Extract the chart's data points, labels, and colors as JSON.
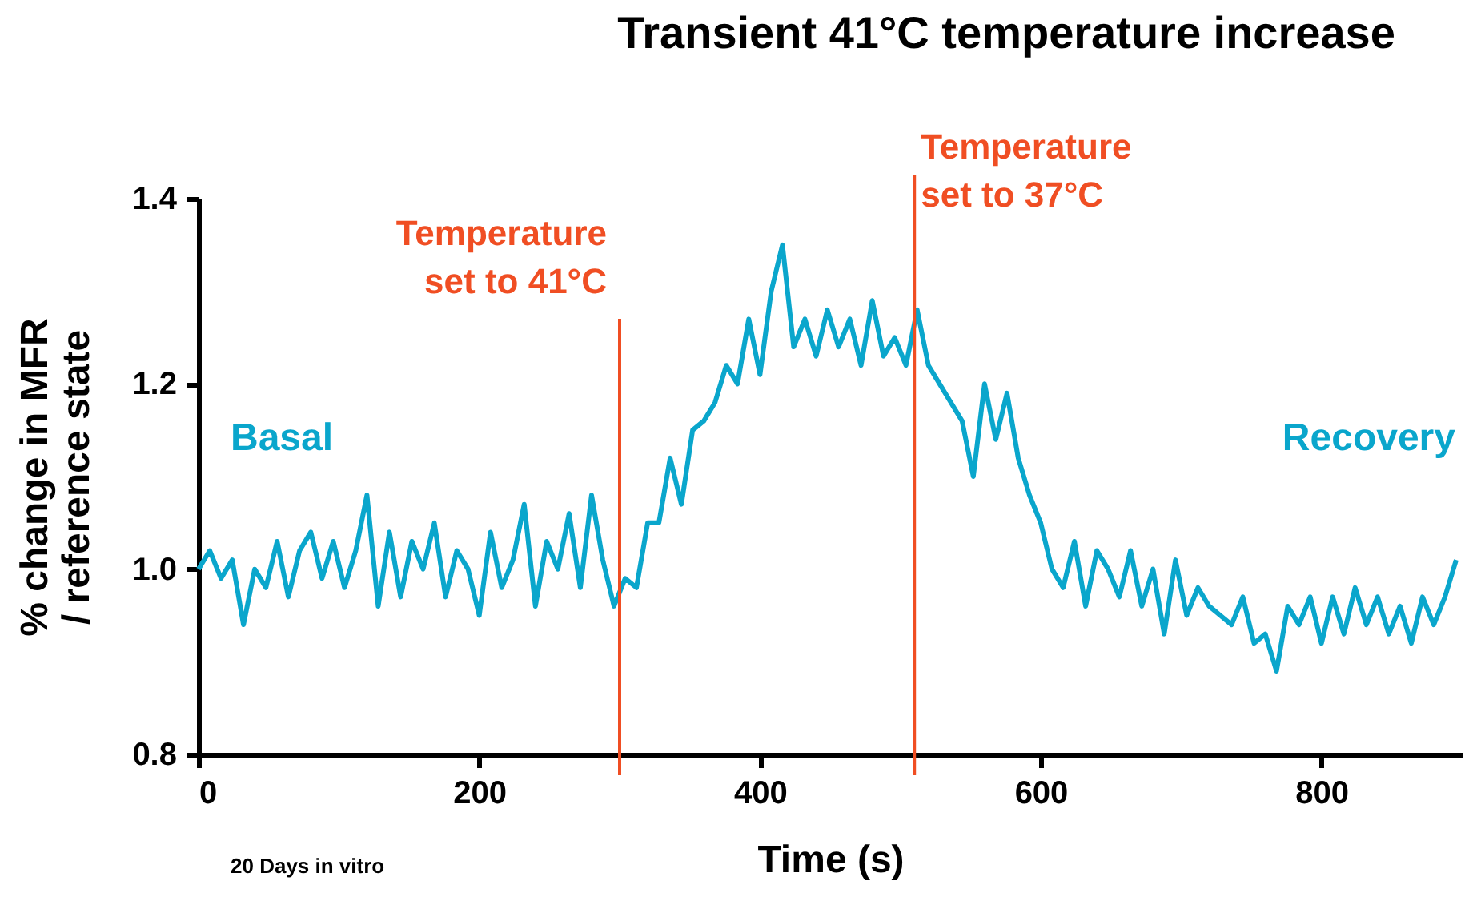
{
  "chart_data": {
    "type": "line",
    "title": "Transient 41°C temperature increase",
    "xlabel": "Time (s)",
    "ylabel": "% change in MFR\n/ reference state",
    "x": [
      0,
      8,
      16,
      24,
      32,
      40,
      48,
      56,
      64,
      72,
      80,
      88,
      96,
      104,
      112,
      120,
      128,
      136,
      144,
      152,
      160,
      168,
      176,
      184,
      192,
      200,
      208,
      216,
      224,
      232,
      240,
      248,
      256,
      264,
      272,
      280,
      288,
      296,
      304,
      312,
      320,
      328,
      336,
      344,
      352,
      360,
      368,
      376,
      384,
      392,
      400,
      408,
      416,
      424,
      432,
      440,
      448,
      456,
      464,
      472,
      480,
      488,
      496,
      504,
      512,
      520,
      528,
      536,
      544,
      552,
      560,
      568,
      576,
      584,
      592,
      600,
      608,
      616,
      624,
      632,
      640,
      648,
      656,
      664,
      672,
      680,
      688,
      696,
      704,
      712,
      720,
      728,
      736,
      744,
      752,
      760,
      768,
      776,
      784,
      792,
      800,
      808,
      816,
      824,
      832,
      840,
      848,
      856,
      864,
      872,
      880,
      888,
      896
    ],
    "series": [
      {
        "color": "#0aa6cc",
        "values": [
          1.0,
          1.02,
          0.99,
          1.01,
          0.94,
          1.0,
          0.98,
          1.03,
          0.97,
          1.02,
          1.04,
          0.99,
          1.03,
          0.98,
          1.02,
          1.08,
          0.96,
          1.04,
          0.97,
          1.03,
          1.0,
          1.05,
          0.97,
          1.02,
          1.0,
          0.95,
          1.04,
          0.98,
          1.01,
          1.07,
          0.96,
          1.03,
          1.0,
          1.06,
          0.98,
          1.08,
          1.01,
          0.96,
          0.99,
          0.98,
          1.05,
          1.05,
          1.12,
          1.07,
          1.15,
          1.16,
          1.18,
          1.22,
          1.2,
          1.27,
          1.21,
          1.3,
          1.35,
          1.24,
          1.27,
          1.23,
          1.28,
          1.24,
          1.27,
          1.22,
          1.29,
          1.23,
          1.25,
          1.22,
          1.28,
          1.22,
          1.2,
          1.18,
          1.16,
          1.1,
          1.2,
          1.14,
          1.19,
          1.12,
          1.08,
          1.05,
          1.0,
          0.98,
          1.03,
          0.96,
          1.02,
          1.0,
          0.97,
          1.02,
          0.96,
          1.0,
          0.93,
          1.01,
          0.95,
          0.98,
          0.96,
          0.95,
          0.94,
          0.97,
          0.92,
          0.93,
          0.89,
          0.96,
          0.94,
          0.97,
          0.92,
          0.97,
          0.93,
          0.98,
          0.94,
          0.97,
          0.93,
          0.96,
          0.92,
          0.97,
          0.94,
          0.97,
          1.01
        ]
      }
    ],
    "xlim": [
      0,
      900
    ],
    "xticks": [
      0,
      200,
      400,
      600,
      800
    ],
    "ylim": [
      0.8,
      1.4
    ],
    "yticks": [
      {
        "value": 0.8,
        "label": "0.8"
      },
      {
        "value": 1,
        "label": "1.0"
      },
      {
        "value": 1.2,
        "label": "1.2"
      },
      {
        "value": 1.4,
        "label": "1.4"
      }
    ],
    "ref_lines": [
      {
        "axis": "x",
        "value": 300,
        "label": "Temperature\nset to 41°C",
        "color": "#f04e23"
      },
      {
        "axis": "x",
        "value": 510,
        "label": "Temperature\nset to 37°C",
        "color": "#f04e23"
      }
    ],
    "annotations": [
      "Basal",
      "Recovery",
      "20 Days in vitro"
    ],
    "grid": false,
    "marker": "none",
    "line_style": "solid"
  }
}
